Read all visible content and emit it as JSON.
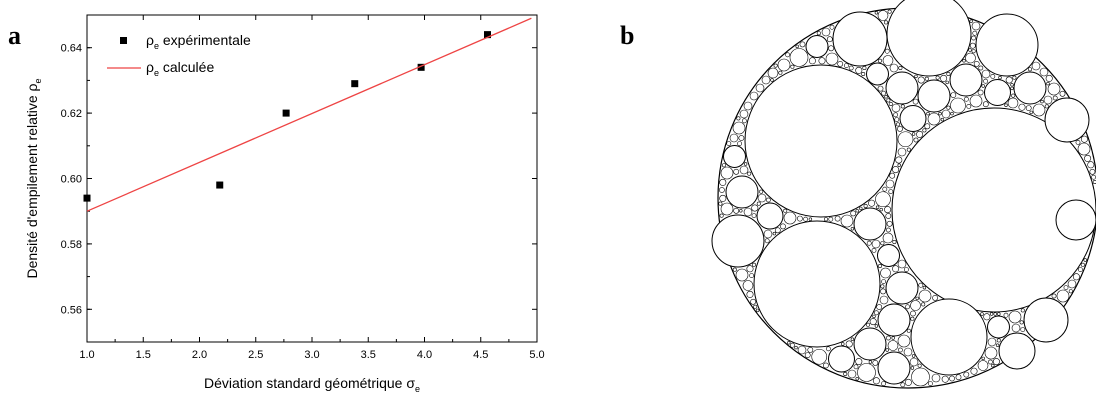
{
  "panels": {
    "left_label": "a",
    "right_label": "b"
  },
  "chart_data": {
    "type": "scatter",
    "title": "",
    "xlabel": {
      "text": "Déviation standard géométrique σ",
      "sub": "e"
    },
    "ylabel": {
      "text": "Densité d'empilement relative ρ",
      "sub": "e"
    },
    "xlim": [
      1.0,
      5.0
    ],
    "ylim": [
      0.55,
      0.65
    ],
    "xticks": [
      1.0,
      1.5,
      2.0,
      2.5,
      3.0,
      3.5,
      4.0,
      4.5,
      5.0
    ],
    "xtick_labels": [
      "1.0",
      "1.5",
      "2.0",
      "2.5",
      "3.0",
      "3.5",
      "4.0",
      "4.5",
      "5.0"
    ],
    "yticks": [
      0.56,
      0.58,
      0.6,
      0.62,
      0.64
    ],
    "ytick_labels": [
      "0.56",
      "0.58",
      "0.60",
      "0.62",
      "0.64"
    ],
    "legend_position": "top-left",
    "series": [
      {
        "name": "ρe expérimentale",
        "legend": {
          "pre": "ρ",
          "sub": "e",
          "post": " expérimentale"
        },
        "kind": "points",
        "color": "#000000",
        "points": [
          [
            1.0,
            0.594
          ],
          [
            2.18,
            0.598
          ],
          [
            2.77,
            0.62
          ],
          [
            3.38,
            0.629
          ],
          [
            3.97,
            0.634
          ],
          [
            4.56,
            0.644
          ]
        ]
      },
      {
        "name": "ρe calculée",
        "legend": {
          "pre": "ρ",
          "sub": "e",
          "post": " calculée"
        },
        "kind": "line",
        "color": "#ee4444",
        "points": [
          [
            1.0,
            0.59
          ],
          [
            4.95,
            0.649
          ]
        ]
      }
    ]
  },
  "packing": {
    "line_color": "#000000",
    "fill_color": "#ffffff"
  }
}
